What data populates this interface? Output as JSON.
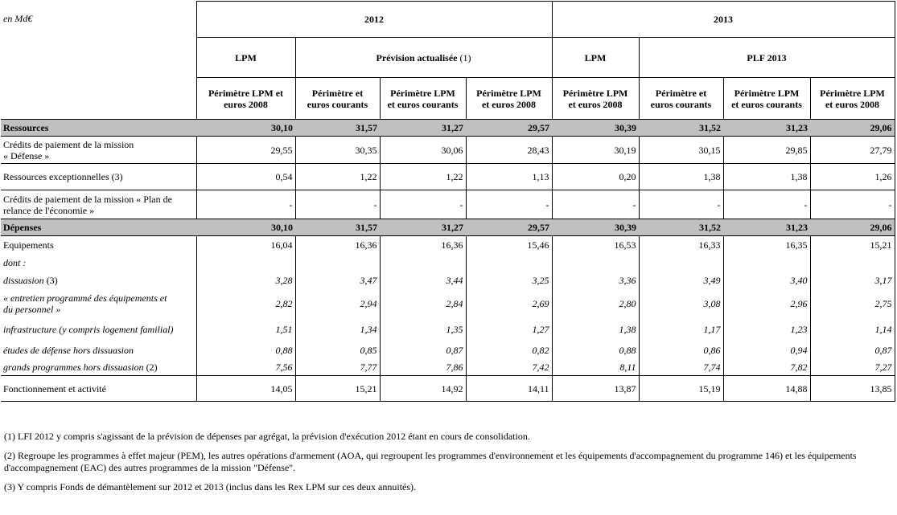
{
  "unit": "en Md€",
  "years": [
    "2012",
    "2013"
  ],
  "subheaders": {
    "y2012_lpm": "LPM",
    "y2012_prev": "Prévision actualisée (1)",
    "y2013_lpm": "LPM",
    "y2013_plf": "PLF 2013"
  },
  "col_headers": [
    [
      "Périmètre LPM et",
      "euros 2008"
    ],
    [
      "Périmètre et",
      "euros courants"
    ],
    [
      "Périmètre LPM",
      "et euros courants"
    ],
    [
      "Périmètre LPM",
      "et euros 2008"
    ],
    [
      "Périmètre LPM",
      "et euros 2008"
    ],
    [
      "Périmètre et",
      "euros courants"
    ],
    [
      "Périmètre LPM",
      "et euros courants"
    ],
    [
      "Périmètre LPM",
      "et euros 2008"
    ]
  ],
  "rows": {
    "ressources": {
      "label": "Ressources",
      "values": [
        "30,10",
        "31,57",
        "31,27",
        "29,57",
        "30,39",
        "31,52",
        "31,23",
        "29,06"
      ]
    },
    "cp_defense": {
      "label": [
        "Crédits de paiement de la mission",
        "« Défense »"
      ],
      "values": [
        "29,55",
        "30,35",
        "30,06",
        "28,43",
        "30,19",
        "30,15",
        "29,85",
        "27,79"
      ]
    },
    "ress_exc": {
      "label": "Ressources exceptionnelles (3)",
      "values": [
        "0,54",
        "1,22",
        "1,22",
        "1,13",
        "0,20",
        "1,38",
        "1,38",
        "1,26"
      ]
    },
    "cp_relance": {
      "label": [
        "Crédits de paiement de la mission « Plan de",
        "relance de l'économie »"
      ],
      "values": [
        "-",
        "-",
        "-",
        "-",
        "-",
        "-",
        "-",
        "-"
      ]
    },
    "depenses": {
      "label": "Dépenses",
      "values": [
        "30,10",
        "31,57",
        "31,27",
        "29,57",
        "30,39",
        "31,52",
        "31,23",
        "29,06"
      ]
    },
    "equipements": {
      "label": "Equipements",
      "values": [
        "16,04",
        "16,36",
        "16,36",
        "15,46",
        "16,53",
        "16,33",
        "16,35",
        "15,21"
      ]
    },
    "dont": {
      "label": "dont :"
    },
    "dissuasion": {
      "label": "dissuasion",
      "note": "(3)",
      "values": [
        "3,28",
        "3,47",
        "3,44",
        "3,25",
        "3,36",
        "3,49",
        "3,40",
        "3,17"
      ]
    },
    "entretien": {
      "label": [
        "« entretien programmé des équipements et",
        "du personnel »"
      ],
      "values": [
        "2,82",
        "2,94",
        "2,84",
        "2,69",
        "2,80",
        "3,08",
        "2,96",
        "2,75"
      ]
    },
    "infrastructure": {
      "label": "infrastructure (y compris logement familial)",
      "values": [
        "1,51",
        "1,34",
        "1,35",
        "1,27",
        "1,38",
        "1,17",
        "1,23",
        "1,14"
      ]
    },
    "etudes": {
      "label": "études de défense hors dissuasion",
      "values": [
        "0,88",
        "0,85",
        "0,87",
        "0,82",
        "0,88",
        "0,86",
        "0,94",
        "0,87"
      ]
    },
    "grands_prog": {
      "label": "grands programmes hors dissuasion",
      "note": "(2)",
      "values": [
        "7,56",
        "7,77",
        "7,86",
        "7,42",
        "8,11",
        "7,74",
        "7,82",
        "7,27"
      ]
    },
    "fonctionnement": {
      "label": "Fonctionnement et activité",
      "values": [
        "14,05",
        "15,21",
        "14,92",
        "14,11",
        "13,87",
        "15,19",
        "14,88",
        "13,85"
      ]
    }
  },
  "notes": [
    "(1) LFI 2012 y compris s'agissant de la prévision de dépenses par agrégat, la prévision d'exécution 2012 étant en cours de consolidation.",
    "(2) Regroupe les programmes à effet majeur (PEM), les autres opérations d'armement (AOA, qui regroupent les programmes d'environnement et les équipements d'accompagnement du programme 146) et les équipements d'accompagnement (EAC) des autres programmes de la mission \"Défense\".",
    "(3) Y compris Fonds de démantèlement sur 2012 et 2013 (inclus dans les Rex LPM sur ces deux annuités)."
  ]
}
